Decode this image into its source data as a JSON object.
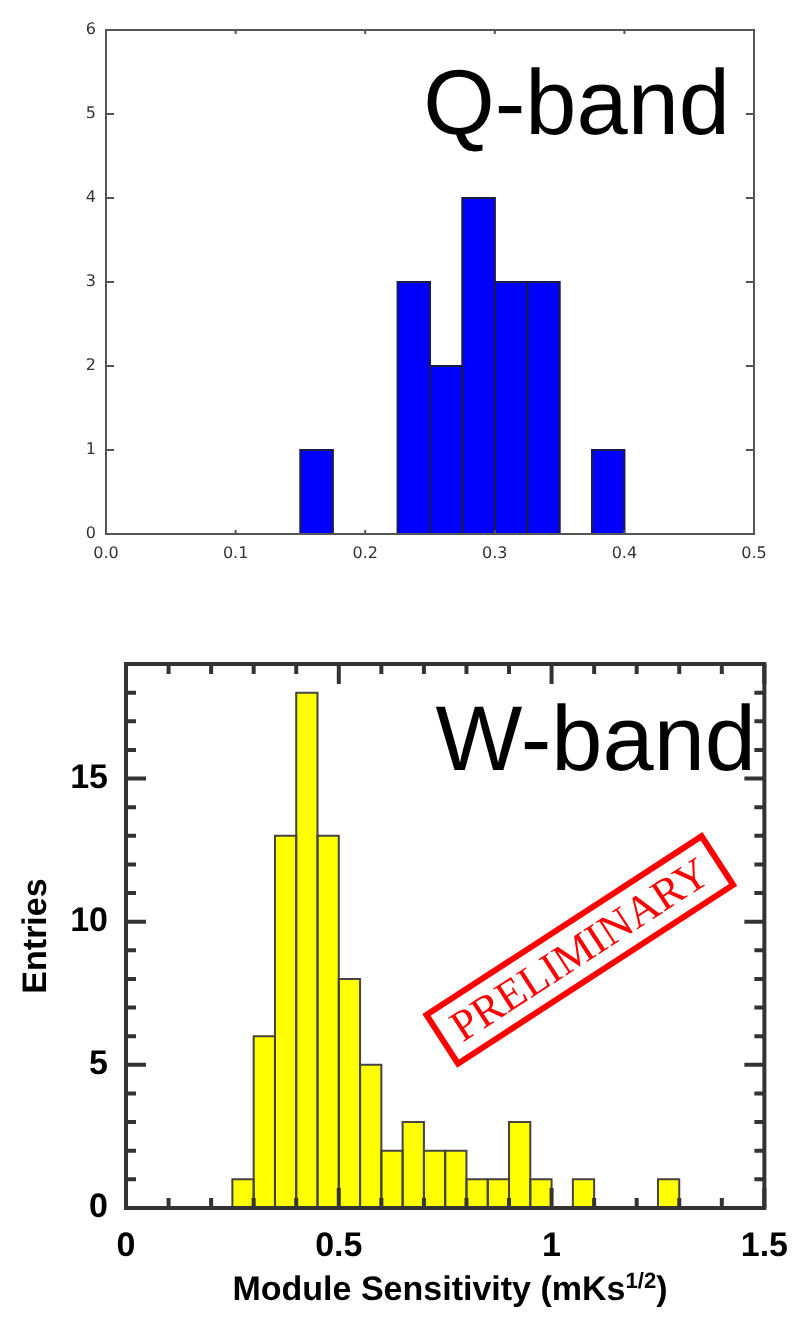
{
  "chart_data": [
    {
      "type": "histogram",
      "bins": [
        0.15,
        0.175,
        0.2,
        0.225,
        0.25,
        0.275,
        0.3,
        0.325,
        0.35,
        0.375,
        0.4
      ],
      "values": [
        1,
        0,
        0,
        3,
        2,
        4,
        3,
        3,
        0,
        1
      ],
      "color": "#0000ff",
      "xlim": [
        0,
        0.5
      ],
      "ylim": [
        0,
        6
      ],
      "xticks": [
        {
          "value": 0,
          "label": "0.0"
        },
        0.1,
        0.2,
        0.3,
        0.4,
        0.5
      ],
      "yticks": [
        0,
        1,
        2,
        3,
        4,
        5,
        6
      ],
      "annotations": [
        "Q-band"
      ]
    },
    {
      "type": "histogram",
      "bins": [
        0.25,
        0.3,
        0.35,
        0.4,
        0.45,
        0.5,
        0.55,
        0.6,
        0.65,
        0.7,
        0.75,
        0.8,
        0.85,
        0.9,
        0.95,
        1,
        1.05,
        1.1,
        1.15,
        1.2,
        1.25,
        1.3
      ],
      "values": [
        1,
        6,
        13,
        18,
        13,
        8,
        5,
        2,
        3,
        2,
        2,
        1,
        1,
        3,
        1,
        0,
        1,
        0,
        0,
        0,
        1
      ],
      "color": "#ffff00",
      "xlim": [
        0,
        1.5
      ],
      "ylim": [
        0,
        19
      ],
      "xticks": [
        0,
        {
          "value": 0.1,
          "label": null
        },
        {
          "value": 0.2,
          "label": null
        },
        {
          "value": 0.3,
          "label": null
        },
        {
          "value": 0.4,
          "label": null
        },
        0.5,
        {
          "value": 0.6,
          "label": null
        },
        {
          "value": 0.7,
          "label": null
        },
        {
          "value": 0.8,
          "label": null
        },
        {
          "value": 0.9,
          "label": null
        },
        1,
        {
          "value": 1.1,
          "label": null
        },
        {
          "value": 1.2,
          "label": null
        },
        {
          "value": 1.3,
          "label": null
        },
        {
          "value": 1.4,
          "label": null
        },
        1.5
      ],
      "yticks": [
        0,
        {
          "value": 1,
          "label": null
        },
        {
          "value": 2,
          "label": null
        },
        {
          "value": 3,
          "label": null
        },
        {
          "value": 4,
          "label": null
        },
        5,
        {
          "value": 6,
          "label": null
        },
        {
          "value": 7,
          "label": null
        },
        {
          "value": 8,
          "label": null
        },
        {
          "value": 9,
          "label": null
        },
        10,
        {
          "value": 11,
          "label": null
        },
        {
          "value": 12,
          "label": null
        },
        {
          "value": 13,
          "label": null
        },
        {
          "value": 14,
          "label": null
        },
        15,
        {
          "value": 16,
          "label": null
        },
        {
          "value": 17,
          "label": null
        },
        {
          "value": 18,
          "label": null
        }
      ],
      "xlabel": "Module Sensitivity (mKs$^{1/2}$)",
      "ylabel": "Entries",
      "annotations": [
        "W-band",
        "PRELIMINARY"
      ]
    }
  ]
}
